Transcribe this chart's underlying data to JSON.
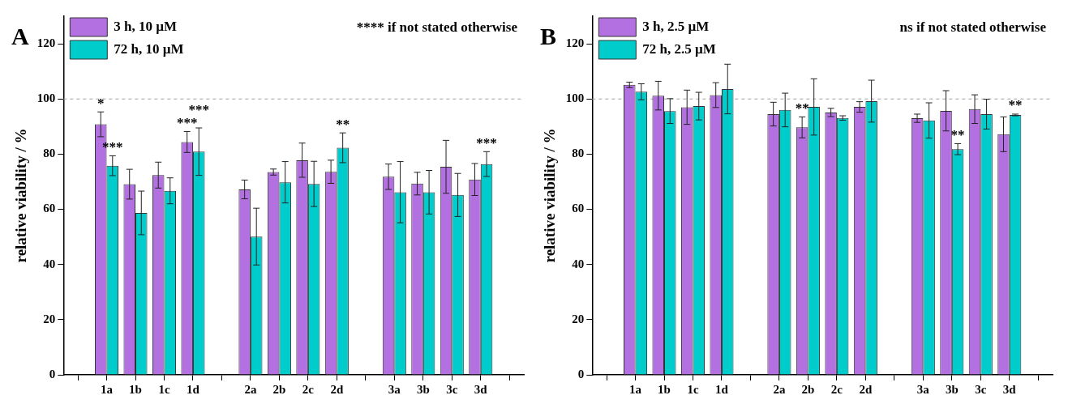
{
  "chart_data": [
    {
      "type": "bar",
      "title": "A",
      "ylabel": "relative viability / %",
      "categories": [
        null,
        "1a",
        "1b",
        "1c",
        "1d",
        null,
        "2a",
        "2b",
        "2c",
        "2d",
        null,
        "3a",
        "3b",
        "3c",
        "3d",
        null
      ],
      "series": [
        {
          "name": "3 h, 10 µM",
          "color": "#b370e0",
          "values": [
            null,
            90.8,
            69.1,
            72.4,
            84.4,
            null,
            67.2,
            73.5,
            77.8,
            73.6,
            null,
            71.8,
            69.3,
            75.4,
            70.8,
            null
          ],
          "errors": [
            null,
            4.5,
            5.4,
            4.7,
            3.8,
            null,
            3.4,
            1.1,
            6.2,
            4.2,
            null,
            4.6,
            4.1,
            9.6,
            5.8,
            null
          ]
        },
        {
          "name": "72 h, 10 µM",
          "color": "#00cccc",
          "values": [
            null,
            75.8,
            58.7,
            66.7,
            80.9,
            null,
            50.1,
            69.8,
            69.2,
            82.3,
            null,
            66.2,
            66.2,
            65.2,
            76.4,
            null
          ],
          "errors": [
            null,
            3.6,
            7.9,
            4.7,
            8.6,
            null,
            10.3,
            7.5,
            8.2,
            5.4,
            null,
            11.1,
            7.9,
            7.8,
            4.5,
            null
          ]
        }
      ],
      "ylim": [
        0,
        130
      ],
      "yticks": [
        0,
        20,
        40,
        60,
        80,
        100,
        120
      ],
      "legend": "top left",
      "ref_lines": [
        {
          "axis": "y",
          "value": 100,
          "color": "#a0a0a0",
          "line_style": "dashed"
        }
      ],
      "annotations": [
        "**** if not stated otherwise",
        {
          "text": "*",
          "x": "1a",
          "y": 90.8
        },
        {
          "text": "***",
          "x": "1a",
          "y": 75.8
        },
        {
          "text": "***",
          "x": "1d",
          "y": 84.4
        },
        {
          "text": "***",
          "x": "1d",
          "y": 80.9
        },
        {
          "text": "**",
          "x": "2d",
          "y": 82.3
        },
        {
          "text": "***",
          "x": "3d",
          "y": 76.4
        }
      ]
    },
    {
      "type": "bar",
      "title": "B",
      "ylabel": "relative viability / %",
      "categories": [
        null,
        "1a",
        "1b",
        "1c",
        "1d",
        null,
        "2a",
        "2b",
        "2c",
        "2d",
        null,
        "3a",
        "3b",
        "3c",
        "3d",
        null
      ],
      "series": [
        {
          "name": "3 h, 2.5 µM",
          "color": "#b370e0",
          "values": [
            null,
            105.1,
            101.2,
            97.0,
            101.4,
            null,
            94.5,
            89.7,
            95.1,
            97.1,
            null,
            93.0,
            95.7,
            96.3,
            87.2,
            null
          ],
          "errors": [
            null,
            1.0,
            5.2,
            6.2,
            4.5,
            null,
            4.3,
            3.8,
            1.5,
            1.9,
            null,
            1.5,
            7.3,
            5.2,
            6.3,
            null
          ]
        },
        {
          "name": "72 h, 2.5 µM",
          "color": "#00cccc",
          "values": [
            null,
            102.6,
            95.6,
            97.4,
            103.6,
            null,
            96.0,
            97.1,
            93.1,
            99.2,
            null,
            92.2,
            81.8,
            94.5,
            94.2,
            null
          ],
          "errors": [
            null,
            2.9,
            4.5,
            5.0,
            9.0,
            null,
            6.1,
            10.2,
            0.8,
            7.6,
            null,
            6.4,
            2.0,
            5.4,
            0.3,
            null
          ]
        }
      ],
      "ylim": [
        0,
        130
      ],
      "yticks": [
        0,
        20,
        40,
        60,
        80,
        100,
        120
      ],
      "legend": "top left",
      "ref_lines": [
        {
          "axis": "y",
          "value": 100,
          "color": "#a0a0a0",
          "line_style": "dashed"
        }
      ],
      "annotations": [
        "ns if not stated otherwise",
        {
          "text": "**",
          "x": "2b",
          "y": 89.7
        },
        {
          "text": "**",
          "x": "3b",
          "y": 81.8
        },
        {
          "text": "**",
          "x": "3d",
          "y": 94.2
        }
      ]
    }
  ]
}
